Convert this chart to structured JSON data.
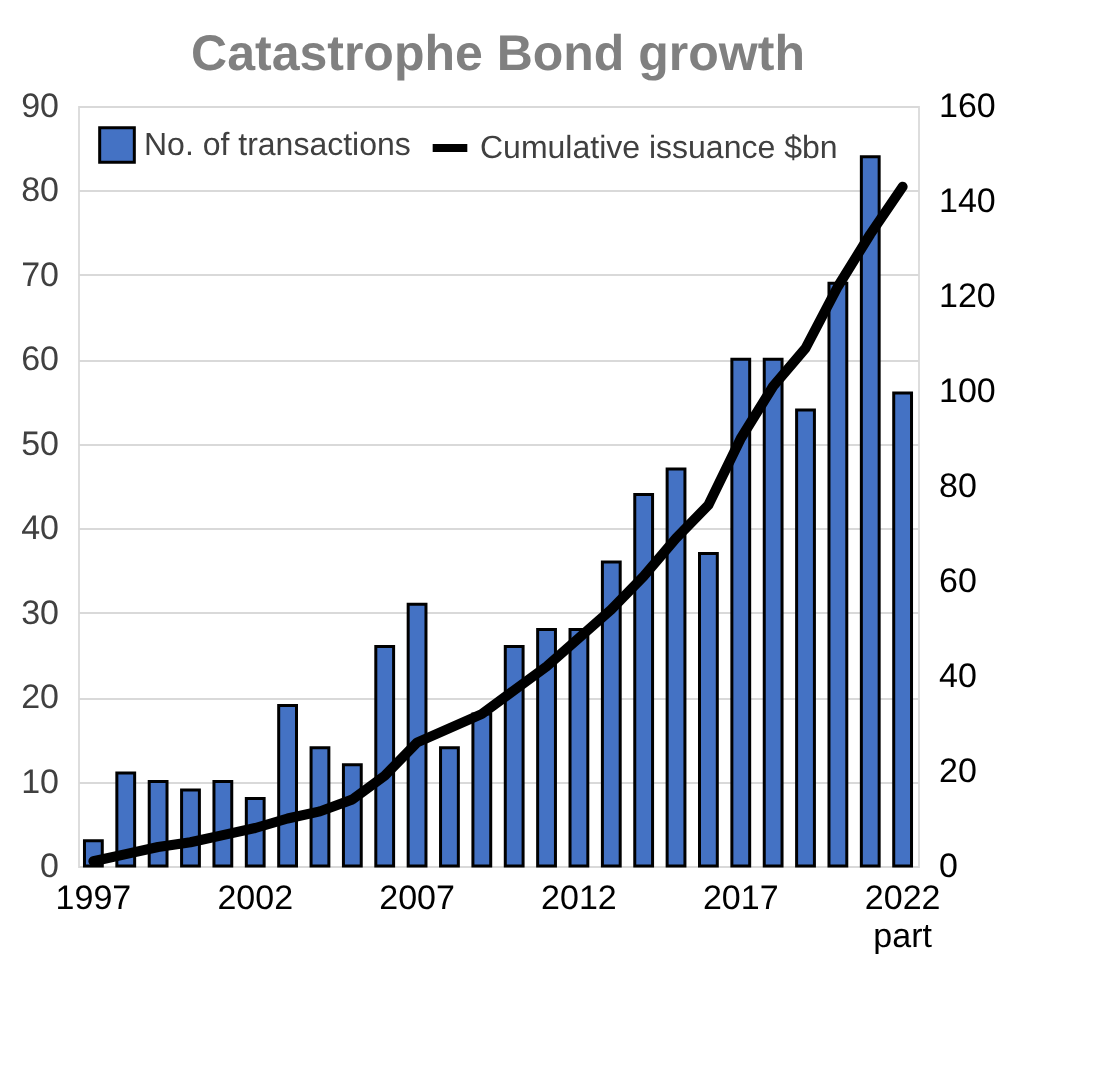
{
  "chart_data": {
    "type": "bar",
    "title": "Catastrophe Bond growth",
    "categories": [
      "1997",
      null,
      null,
      null,
      null,
      "2002",
      null,
      null,
      null,
      null,
      "2007",
      null,
      null,
      null,
      null,
      "2012",
      null,
      null,
      null,
      null,
      "2017",
      null,
      null,
      null,
      null,
      "2022\npart"
    ],
    "series": [
      {
        "name": "No. of transactions",
        "color": "#4472c4",
        "values": [
          3,
          11,
          10,
          9,
          10,
          8,
          19,
          14,
          12,
          26,
          31,
          14,
          18,
          26,
          28,
          28,
          36,
          44,
          47,
          37,
          60,
          60,
          54,
          69,
          84,
          56
        ]
      },
      {
        "name": "Cumulative issuance $bn",
        "type": "line",
        "axis": "y2",
        "color": "#000000",
        "values": [
          1,
          2.5,
          4,
          5,
          6.5,
          8,
          10,
          11.5,
          14,
          19,
          26,
          29,
          32,
          37,
          42,
          48,
          54,
          61,
          69,
          76,
          90,
          101,
          109,
          122,
          133,
          143
        ]
      }
    ],
    "ylim": [
      0,
      90
    ],
    "yticks": [
      0,
      10,
      20,
      30,
      40,
      50,
      60,
      70,
      80,
      90
    ],
    "y2lim": [
      0,
      160
    ],
    "y2ticks": [
      0,
      20,
      40,
      60,
      80,
      100,
      120,
      140,
      160
    ],
    "grid": "y",
    "legend": "top left"
  }
}
